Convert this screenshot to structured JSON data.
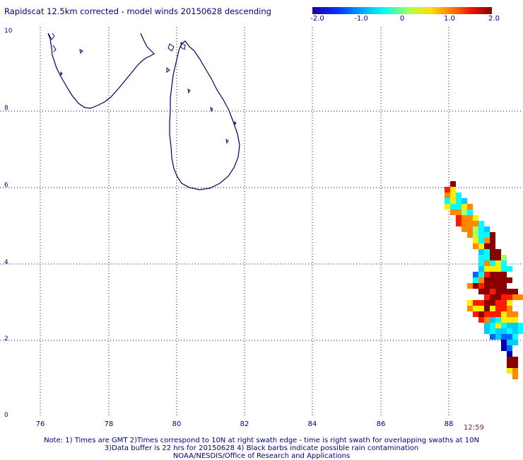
{
  "title": "Rapidscat 12.5km corrected - model winds 20150628 descending",
  "colorbar": {
    "labels": [
      "-2.0",
      "-1.0",
      "0",
      "1.0",
      "2.0"
    ],
    "values": [
      -2,
      -1,
      0,
      1,
      2
    ],
    "colors": [
      "#0000aa",
      "#0044ff",
      "#00ccff",
      "#66ffcc",
      "#ffff00",
      "#ff9900",
      "#ff2200",
      "#8b0000"
    ]
  },
  "axes": {
    "x_ticks": [
      "76",
      "78",
      "80",
      "82",
      "84",
      "86",
      "88"
    ],
    "x_values": [
      76,
      78,
      80,
      82,
      84,
      86,
      88
    ],
    "y_ticks": [
      "10",
      "8",
      "6",
      "4",
      "2",
      "0"
    ],
    "y_values": [
      10,
      8,
      6,
      4,
      2,
      0
    ],
    "xlim": [
      75.7,
      90.1
    ],
    "ylim": [
      0,
      10
    ]
  },
  "swath_time": "12:59",
  "notes": [
    "Note: 1) Times are GMT 2)Times correspond to 10N at right swath edge - time is right swath for overlapping swaths at 10N",
    "3)Data buffer is 22 hrs for 20150628 4) Black barbs indicate possible rain contamination",
    "NOAA/NESDIS/Office of Research and Applications"
  ],
  "colors": {
    "text": "#000088",
    "coast": "#000066",
    "grid": "#000088",
    "time": "#8b1a1a"
  }
}
